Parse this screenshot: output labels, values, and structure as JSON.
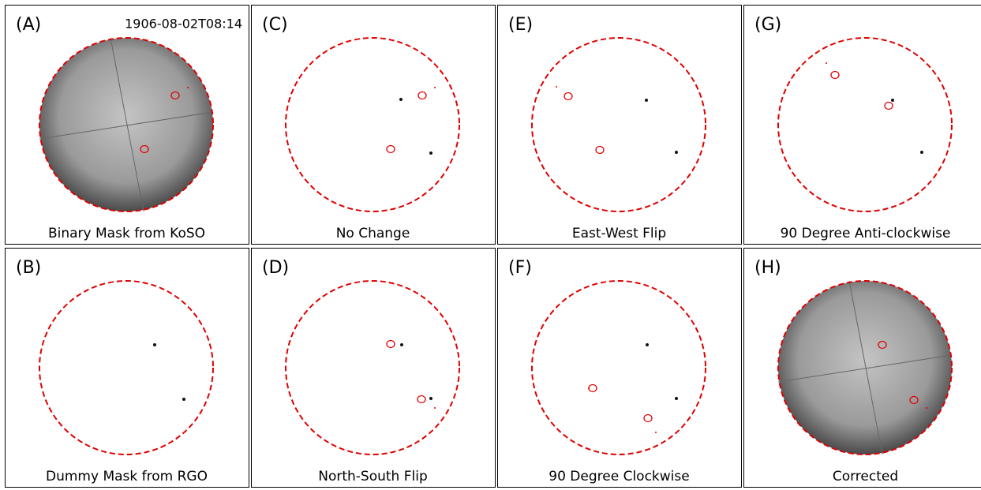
{
  "panels": [
    {
      "label": "(A)",
      "caption": "Binary Mask from KoSO",
      "timestamp": "1906-08-02T08:14"
    },
    {
      "label": "(C)",
      "caption": "No Change"
    },
    {
      "label": "(E)",
      "caption": "East-West Flip"
    },
    {
      "label": "(G)",
      "caption": "90 Degree Anti-clockwise"
    },
    {
      "label": "(B)",
      "caption": "Dummy Mask from RGO"
    },
    {
      "label": "(D)",
      "caption": "North-South Flip"
    },
    {
      "label": "(F)",
      "caption": "90 Degree Clockwise"
    },
    {
      "label": "(H)",
      "caption": "Corrected"
    }
  ]
}
